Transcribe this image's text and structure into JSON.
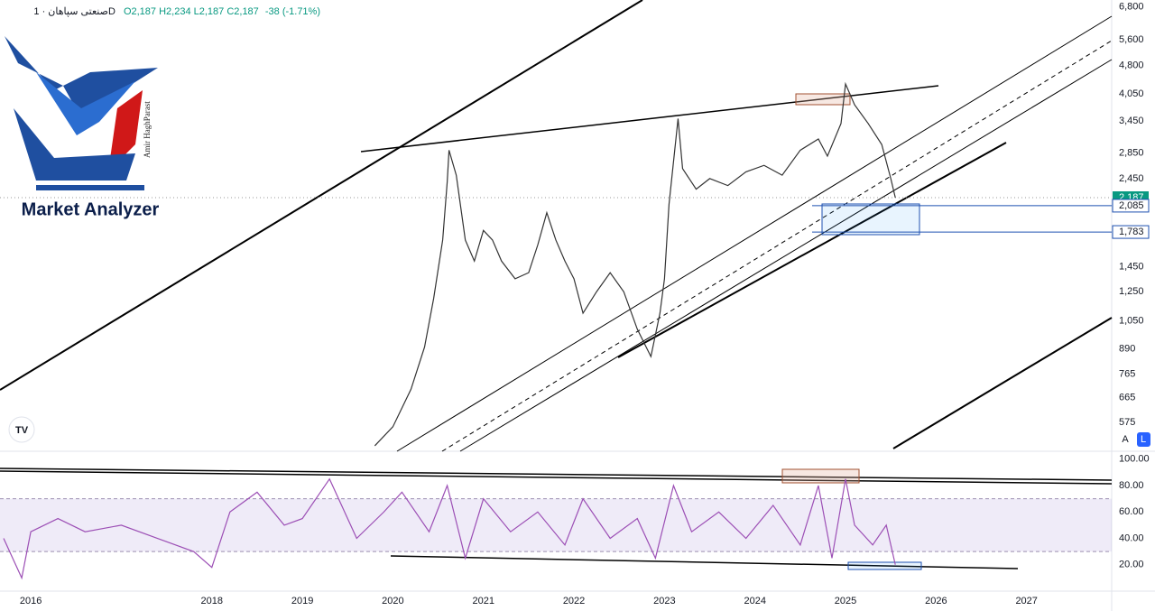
{
  "header": {
    "symbol": "صنعتی سپاهان · 1D",
    "ohlc": "O2,187 H2,234 L2,187 C2,187",
    "change": "-38 (-1.71%)"
  },
  "logo": {
    "title": "Market Analyzer",
    "author": "Amir HaghParast"
  },
  "scale_buttons": [
    "A",
    "L"
  ],
  "chart_data": [
    {
      "type": "line",
      "log_scale": true,
      "color": "#333333",
      "x": [
        2019.8,
        2020.0,
        2020.2,
        2020.35,
        2020.45,
        2020.55,
        2020.6,
        2020.62,
        2020.7,
        2020.8,
        2020.9,
        2021.0,
        2021.1,
        2021.2,
        2021.35,
        2021.5,
        2021.6,
        2021.7,
        2021.8,
        2021.9,
        2022.0,
        2022.1,
        2022.25,
        2022.4,
        2022.55,
        2022.7,
        2022.85,
        2022.95,
        2023.0,
        2023.05,
        2023.15,
        2023.2,
        2023.35,
        2023.5,
        2023.7,
        2023.9,
        2024.1,
        2024.3,
        2024.5,
        2024.7,
        2024.8,
        2024.95,
        2025.0,
        2025.1,
        2025.25,
        2025.4,
        2025.5,
        2025.55
      ],
      "values": [
        500,
        560,
        700,
        900,
        1200,
        1700,
        2400,
        2900,
        2500,
        1700,
        1500,
        1800,
        1700,
        1500,
        1350,
        1400,
        1650,
        2000,
        1700,
        1500,
        1350,
        1100,
        1250,
        1400,
        1250,
        1000,
        850,
        1100,
        1350,
        2100,
        3500,
        2600,
        2300,
        2450,
        2350,
        2550,
        2650,
        2500,
        2900,
        3100,
        2800,
        3400,
        4300,
        3800,
        3400,
        3000,
        2450,
        2187
      ],
      "xlim": [
        2015.66,
        2027.94
      ],
      "xticks": [
        2016,
        2018,
        2019,
        2020,
        2021,
        2022,
        2023,
        2024,
        2025,
        2026,
        2027
      ],
      "ylim": [
        484,
        7086
      ],
      "yticks": [
        {
          "value": 6800,
          "label": "6,800"
        },
        {
          "value": 5600,
          "label": "5,600"
        },
        {
          "value": 4800,
          "label": "4,800"
        },
        {
          "value": 4050,
          "label": "4,050"
        },
        {
          "value": 3450,
          "label": "3,450"
        },
        {
          "value": 2850,
          "label": "2,850"
        },
        {
          "value": 2450,
          "label": "2,450"
        },
        {
          "value": 1450,
          "label": "1,450"
        },
        {
          "value": 1250,
          "label": "1,250"
        },
        {
          "value": 1050,
          "label": "1,050"
        },
        890,
        765,
        665,
        575
      ],
      "last_price": {
        "value": 2187,
        "label": "2,187"
      },
      "levels": [
        {
          "value": 2085,
          "label": "2,085"
        },
        {
          "value": 1783,
          "label": "1,783"
        }
      ]
    },
    {
      "type": "line",
      "color": "#9c4fb5",
      "x": [
        2015.7,
        2015.8,
        2015.9,
        2016.0,
        2016.3,
        2016.6,
        2017.0,
        2017.4,
        2017.8,
        2018.0,
        2018.2,
        2018.5,
        2018.8,
        2019.0,
        2019.3,
        2019.6,
        2019.9,
        2020.1,
        2020.4,
        2020.6,
        2020.8,
        2021.0,
        2021.3,
        2021.6,
        2021.9,
        2022.1,
        2022.4,
        2022.7,
        2022.9,
        2023.1,
        2023.3,
        2023.6,
        2023.9,
        2024.2,
        2024.5,
        2024.7,
        2024.85,
        2025.0,
        2025.1,
        2025.3,
        2025.45,
        2025.55
      ],
      "values": [
        40,
        25,
        10,
        45,
        55,
        45,
        50,
        40,
        30,
        18,
        60,
        75,
        50,
        55,
        85,
        40,
        60,
        75,
        45,
        80,
        25,
        70,
        45,
        60,
        35,
        70,
        40,
        55,
        25,
        80,
        45,
        60,
        40,
        65,
        35,
        80,
        25,
        85,
        50,
        35,
        50,
        20
      ],
      "xlim": [
        2015.66,
        2027.94
      ],
      "ylim": [
        0,
        106
      ],
      "band": [
        30,
        70
      ],
      "yticks": [
        {
          "value": 100,
          "label": "100.00"
        },
        {
          "value": 80,
          "label": "80.00"
        },
        {
          "value": 60,
          "label": "60.00"
        },
        {
          "value": 40,
          "label": "40.00"
        },
        {
          "value": 20,
          "label": "20.00"
        }
      ]
    }
  ]
}
